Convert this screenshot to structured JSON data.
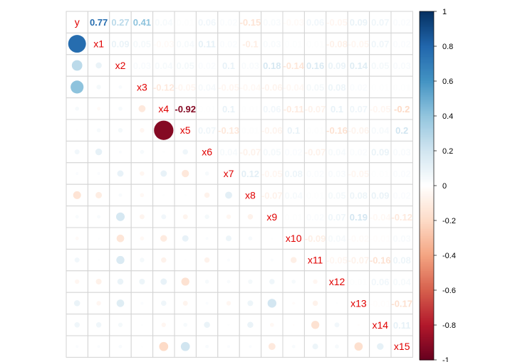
{
  "chart_data": {
    "type": "heatmap",
    "subtype": "mixed correlation matrix (lower: circles, upper: numbers)",
    "variables": [
      "y",
      "x1",
      "x2",
      "x3",
      "x4",
      "x5",
      "x6",
      "x7",
      "x8",
      "x9",
      "x10",
      "x11",
      "x12",
      "x13",
      "x14",
      "x15"
    ],
    "lower_shape": "circle",
    "upper_shape": "number",
    "number_precision": 2,
    "color_range": [
      -1,
      1
    ],
    "color_low": "#67001F",
    "color_mid": "#FFFFFF",
    "color_high": "#053061",
    "colorbar_ticks": [
      1,
      0.8,
      0.6,
      0.4,
      0.2,
      0,
      -0.2,
      -0.4,
      -0.6,
      -0.8,
      -1
    ],
    "colorbar_tick_labels": [
      "1",
      "0.8",
      "0.6",
      "0.4",
      "0.2",
      "0",
      "-0.2",
      "-0.4",
      "-0.6",
      "-0.8",
      "-1"
    ],
    "diag_label_color": "#e00000",
    "grid_color": "#d3d3d3",
    "correlations": [
      [
        1,
        0.77,
        0.27,
        0.41,
        0.04,
        0.01,
        0.06,
        0.02,
        -0.15,
        0.03,
        -0.03,
        0.06,
        -0.05,
        0.09,
        0.07,
        0.02
      ],
      [
        0.77,
        1,
        0.09,
        0.05,
        -0.03,
        0.04,
        0.11,
        0.02,
        -0.1,
        0.03,
        0.01,
        0.01,
        -0.08,
        -0.05,
        0.07,
        0.02
      ],
      [
        0.27,
        0.09,
        1,
        0.03,
        0.04,
        0.05,
        0.02,
        0.1,
        0.03,
        0.18,
        -0.14,
        0.16,
        0.09,
        0.14,
        0.05,
        0.03
      ],
      [
        0.41,
        0.05,
        0.03,
        1,
        -0.12,
        -0.05,
        0.04,
        -0.05,
        -0.04,
        -0.06,
        -0.04,
        0.05,
        0.08,
        0.02,
        0.01,
        0.01
      ],
      [
        0.04,
        -0.03,
        0.04,
        -0.12,
        1,
        -0.92,
        0.01,
        0.1,
        0.01,
        0.06,
        -0.11,
        -0.07,
        0.1,
        0.07,
        -0.05,
        -0.2
      ],
      [
        0.01,
        0.04,
        0.05,
        -0.05,
        -0.92,
        1,
        0.07,
        -0.13,
        0.01,
        -0.06,
        0.1,
        0.01,
        -0.16,
        -0.06,
        0.04,
        0.2
      ],
      [
        0.06,
        0.11,
        0.02,
        0.04,
        0.01,
        0.07,
        1,
        0.04,
        -0.07,
        0.05,
        0.02,
        -0.07,
        0.04,
        0.02,
        0.09,
        0.03
      ],
      [
        0.02,
        0.02,
        0.1,
        -0.05,
        0.1,
        -0.13,
        0.04,
        1,
        0.12,
        -0.05,
        0.08,
        0.02,
        0.03,
        -0.05,
        0.01,
        0.02
      ],
      [
        -0.15,
        -0.1,
        0.03,
        -0.04,
        0.01,
        0.01,
        -0.07,
        0.12,
        1,
        -0.07,
        0.04,
        0.01,
        0.05,
        0.08,
        0.09,
        0.02
      ],
      [
        0.03,
        0.03,
        0.18,
        -0.06,
        0.06,
        -0.06,
        0.05,
        -0.05,
        -0.07,
        1,
        0.01,
        0.02,
        0.07,
        0.19,
        -0.04,
        -0.12
      ],
      [
        -0.03,
        0.01,
        -0.14,
        -0.04,
        -0.11,
        0.1,
        0.02,
        0.08,
        0.04,
        0.01,
        1,
        -0.09,
        0.04,
        -0.02,
        -0.01,
        0.03
      ],
      [
        0.06,
        0.01,
        0.16,
        0.05,
        -0.07,
        0.01,
        -0.07,
        0.02,
        0.01,
        0.02,
        -0.09,
        1,
        -0.05,
        -0.07,
        -0.16,
        0.08
      ],
      [
        -0.05,
        -0.08,
        0.09,
        0.08,
        0.1,
        -0.16,
        0.04,
        0.03,
        0.05,
        0.07,
        0.04,
        -0.05,
        1,
        0.01,
        0.06,
        0.04
      ],
      [
        0.09,
        -0.05,
        0.14,
        0.02,
        0.07,
        -0.06,
        0.02,
        -0.05,
        0.08,
        0.19,
        -0.02,
        -0.07,
        0.01,
        1,
        -0.01,
        -0.17
      ],
      [
        0.07,
        0.07,
        0.05,
        0.01,
        -0.05,
        0.04,
        0.09,
        0.01,
        0.09,
        -0.04,
        -0.01,
        -0.16,
        0.06,
        -0.01,
        1,
        0.11
      ],
      [
        0.02,
        0.02,
        0.03,
        0.01,
        -0.2,
        0.2,
        0.03,
        0.02,
        0.02,
        -0.12,
        0.03,
        0.08,
        0.04,
        -0.17,
        0.11,
        1
      ]
    ]
  }
}
